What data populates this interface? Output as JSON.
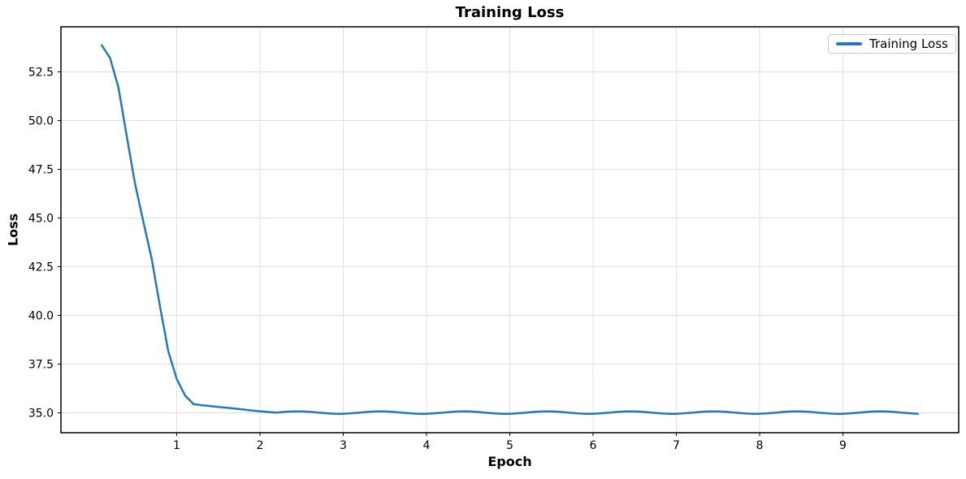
{
  "chart_data": {
    "type": "line",
    "title": "Training Loss",
    "xlabel": "Epoch",
    "ylabel": "Loss",
    "grid": true,
    "legend_position": "upper right",
    "xlim": [
      -0.39,
      10.39
    ],
    "ylim": [
      33.99,
      54.8
    ],
    "xticks": [
      1,
      2,
      3,
      4,
      5,
      6,
      7,
      8,
      9
    ],
    "xtick_labels": [
      "1",
      "2",
      "3",
      "4",
      "5",
      "6",
      "7",
      "8",
      "9"
    ],
    "yticks": [
      35.0,
      37.5,
      40.0,
      42.5,
      45.0,
      47.5,
      50.0,
      52.5
    ],
    "ytick_labels": [
      "35.0",
      "37.5",
      "40.0",
      "42.5",
      "45.0",
      "47.5",
      "50.0",
      "52.5"
    ],
    "colors": {
      "line": "#2579b5",
      "grid": "#e0e0e0",
      "spine": "#000000",
      "legend_border": "#cccccc"
    },
    "line_width": 2.5,
    "series": [
      {
        "name": "Training Loss",
        "x": [
          0.1,
          0.2,
          0.3,
          0.4,
          0.5,
          0.6,
          0.7,
          0.8,
          0.9,
          1.0,
          1.1,
          1.2,
          1.3,
          1.4,
          1.5,
          1.6,
          1.7,
          1.8,
          1.9,
          2.0,
          2.1,
          2.2,
          2.3,
          2.4,
          2.5,
          2.6,
          2.7,
          2.8,
          2.9,
          3.0,
          3.1,
          3.2,
          3.3,
          3.4,
          3.5,
          3.6,
          3.7,
          3.8,
          3.9,
          4.0,
          4.1,
          4.2,
          4.3,
          4.4,
          4.5,
          4.6,
          4.7,
          4.8,
          4.9,
          5.0,
          5.1,
          5.2,
          5.3,
          5.4,
          5.5,
          5.6,
          5.7,
          5.8,
          5.9,
          6.0,
          6.1,
          6.2,
          6.3,
          6.4,
          6.5,
          6.6,
          6.7,
          6.8,
          6.9,
          7.0,
          7.1,
          7.2,
          7.3,
          7.4,
          7.5,
          7.6,
          7.7,
          7.8,
          7.9,
          8.0,
          8.1,
          8.2,
          8.3,
          8.4,
          8.5,
          8.6,
          8.7,
          8.8,
          8.9,
          9.0,
          9.1,
          9.2,
          9.3,
          9.4,
          9.5,
          9.6,
          9.7,
          9.8,
          9.9
        ],
        "y": [
          53.85,
          53.2,
          51.7,
          49.2,
          46.75,
          44.8,
          42.9,
          40.45,
          38.15,
          36.75,
          35.9,
          35.46,
          35.4,
          35.36,
          35.31,
          35.27,
          35.23,
          35.18,
          35.13,
          35.09,
          35.05,
          35.02,
          35.06,
          35.08,
          35.08,
          35.06,
          35.02,
          34.99,
          34.96,
          34.96,
          34.99,
          35.02,
          35.06,
          35.08,
          35.08,
          35.06,
          35.02,
          34.99,
          34.96,
          34.96,
          34.99,
          35.02,
          35.06,
          35.08,
          35.08,
          35.06,
          35.02,
          34.99,
          34.96,
          34.96,
          34.99,
          35.02,
          35.06,
          35.08,
          35.08,
          35.06,
          35.02,
          34.99,
          34.96,
          34.96,
          34.99,
          35.02,
          35.06,
          35.08,
          35.08,
          35.06,
          35.02,
          34.99,
          34.96,
          34.96,
          34.99,
          35.02,
          35.06,
          35.08,
          35.08,
          35.06,
          35.02,
          34.99,
          34.96,
          34.96,
          34.99,
          35.02,
          35.06,
          35.08,
          35.08,
          35.06,
          35.02,
          34.99,
          34.96,
          34.96,
          34.99,
          35.02,
          35.06,
          35.08,
          35.08,
          35.06,
          35.02,
          34.99,
          34.96
        ]
      }
    ]
  }
}
